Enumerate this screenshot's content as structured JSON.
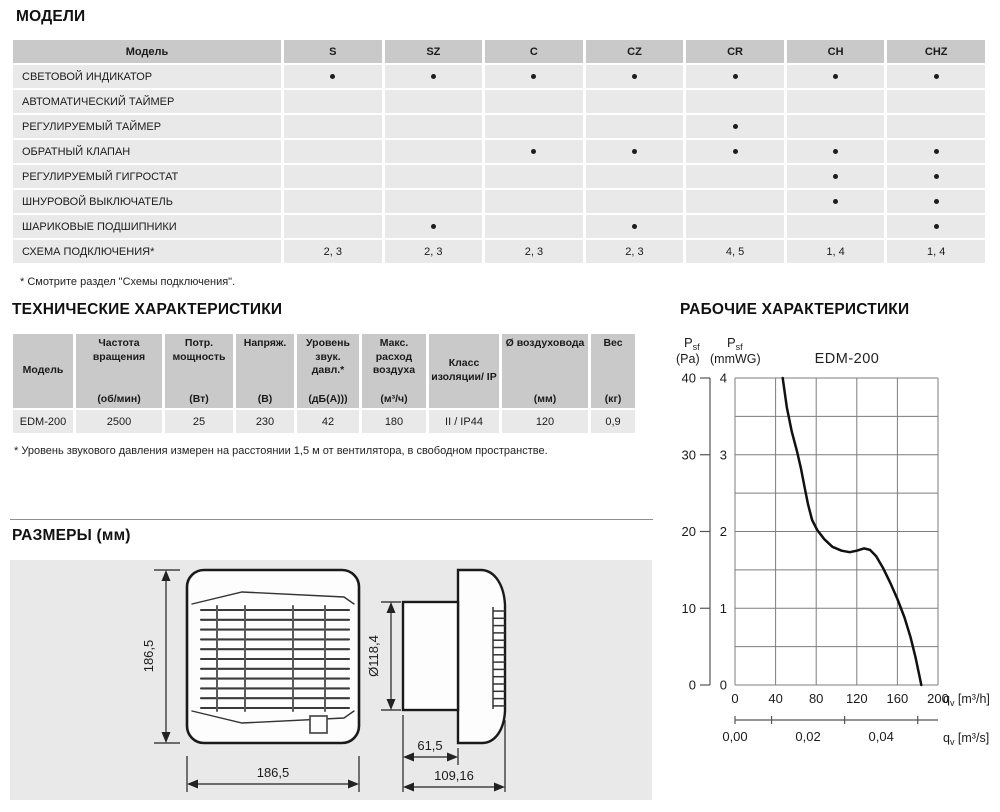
{
  "headings": {
    "models": "МОДЕЛИ",
    "tech": "ТЕХНИЧЕСКИЕ ХАРАКТЕРИСТИКИ",
    "performance": "РАБОЧИЕ ХАРАКТЕРИСТИКИ",
    "dimensions": "РАЗМЕРЫ (мм)"
  },
  "colors": {
    "table_header_gray": "#c9c9c9",
    "table_row_gray": "#e9e9e9",
    "panel_gray": "#e9e9e9",
    "curve_black": "#111111",
    "grid_gray": "#7d7d7d"
  },
  "models_table": {
    "header": [
      "Модель",
      "S",
      "SZ",
      "C",
      "CZ",
      "CR",
      "CH",
      "CHZ"
    ],
    "rows": [
      {
        "label": "СВЕТОВОЙ ИНДИКАТОР",
        "values": [
          "•",
          "•",
          "•",
          "•",
          "•",
          "•",
          "•"
        ]
      },
      {
        "label": "АВТОМАТИЧЕСКИЙ ТАЙМЕР",
        "values": [
          "",
          "",
          "",
          "",
          "",
          "",
          ""
        ]
      },
      {
        "label": "РЕГУЛИРУЕМЫЙ ТАЙМЕР",
        "values": [
          "",
          "",
          "",
          "",
          "•",
          "",
          ""
        ]
      },
      {
        "label": "ОБРАТНЫЙ КЛАПАН",
        "values": [
          "",
          "",
          "•",
          "•",
          "•",
          "•",
          "•"
        ]
      },
      {
        "label": "РЕГУЛИРУЕМЫЙ ГИГРОСТАТ",
        "values": [
          "",
          "",
          "",
          "",
          "",
          "•",
          "•"
        ]
      },
      {
        "label": "ШНУРОВОЙ ВЫКЛЮЧАТЕЛЬ",
        "values": [
          "",
          "",
          "",
          "",
          "",
          "•",
          "•"
        ]
      },
      {
        "label": "ШАРИКОВЫЕ ПОДШИПНИКИ",
        "values": [
          "",
          "•",
          "",
          "•",
          "",
          "",
          "•"
        ]
      },
      {
        "label": "СХЕМА ПОДКЛЮЧЕНИЯ*",
        "values": [
          "2, 3",
          "2, 3",
          "2, 3",
          "2, 3",
          "4, 5",
          "1, 4",
          "1, 4"
        ]
      }
    ],
    "footnote": "* Смотрите раздел \"Схемы подключения\"."
  },
  "tech_table": {
    "columns": [
      {
        "title": "Модель",
        "unit": ""
      },
      {
        "title": "Частота вращения",
        "unit": "(об/мин)"
      },
      {
        "title": "Потр. мощность",
        "unit": "(Вт)"
      },
      {
        "title": "Напряж.",
        "unit": "(В)"
      },
      {
        "title": "Уровень звук. давл.*",
        "unit": "(дБ(А)))"
      },
      {
        "title": "Макс. расход воздуха",
        "unit": "(м³/ч)"
      },
      {
        "title": "Класс изоляции/ IP",
        "unit": ""
      },
      {
        "title": "Ø воздуховода",
        "unit": "(мм)"
      },
      {
        "title": "Вес",
        "unit": "(кг)"
      }
    ],
    "row": [
      "EDM-200",
      "2500",
      "25",
      "230",
      "42",
      "180",
      "II / IP44",
      "120",
      "0,9"
    ],
    "footnote": "* Уровень звукового давления измерен на расстоянии 1,5 м от вентилятора, в свободном пространстве."
  },
  "dimensions": {
    "front_height_mm": "186,5",
    "front_width_mm": "186,5",
    "duct_diameter_mm": "Ø118,4",
    "spigot_depth_mm": "61,5",
    "total_depth_mm": "109,16"
  },
  "chart_data": {
    "type": "line",
    "title": "EDM-200",
    "pressure_symbol": "P",
    "pressure_sub": "sf",
    "unit_pa": "(Pa)",
    "unit_mmwg": "(mmWG)",
    "flow_symbol": "q",
    "flow_sub": "v",
    "flow_unit_h": " [m³/h]",
    "flow_unit_s": " [m³/s]",
    "y_left_pa_ticks": [
      0,
      10,
      20,
      30,
      40
    ],
    "y_inner_mmwg_ticks": [
      0,
      1,
      2,
      3,
      4
    ],
    "x_m3h_ticks": [
      0,
      40,
      80,
      120,
      160,
      200
    ],
    "x_m3s_labels": [
      {
        "label": "0,00",
        "m3h": 0
      },
      {
        "label": "0,02",
        "m3h": 72
      },
      {
        "label": "0,04",
        "m3h": 144
      }
    ],
    "x_m3s_minor_ticks_m3h": [
      0,
      36,
      108,
      180
    ],
    "x_range_m3h": [
      0,
      200
    ],
    "y_range_mmwg": [
      0,
      4
    ],
    "grid": true,
    "series": [
      {
        "name": "EDM-200 pressure curve",
        "points_qv_m3h_vs_psf_mmwg": [
          [
            47,
            4.0
          ],
          [
            51,
            3.62
          ],
          [
            56,
            3.3
          ],
          [
            61,
            3.05
          ],
          [
            65,
            2.82
          ],
          [
            69,
            2.55
          ],
          [
            72,
            2.35
          ],
          [
            76,
            2.15
          ],
          [
            81,
            2.02
          ],
          [
            88,
            1.9
          ],
          [
            96,
            1.8
          ],
          [
            105,
            1.75
          ],
          [
            113,
            1.73
          ],
          [
            120,
            1.75
          ],
          [
            127,
            1.78
          ],
          [
            133,
            1.76
          ],
          [
            139,
            1.68
          ],
          [
            146,
            1.52
          ],
          [
            153,
            1.33
          ],
          [
            160,
            1.12
          ],
          [
            167,
            0.88
          ],
          [
            173,
            0.62
          ],
          [
            178,
            0.35
          ],
          [
            182,
            0.1
          ],
          [
            183.5,
            0.0
          ]
        ]
      }
    ]
  }
}
